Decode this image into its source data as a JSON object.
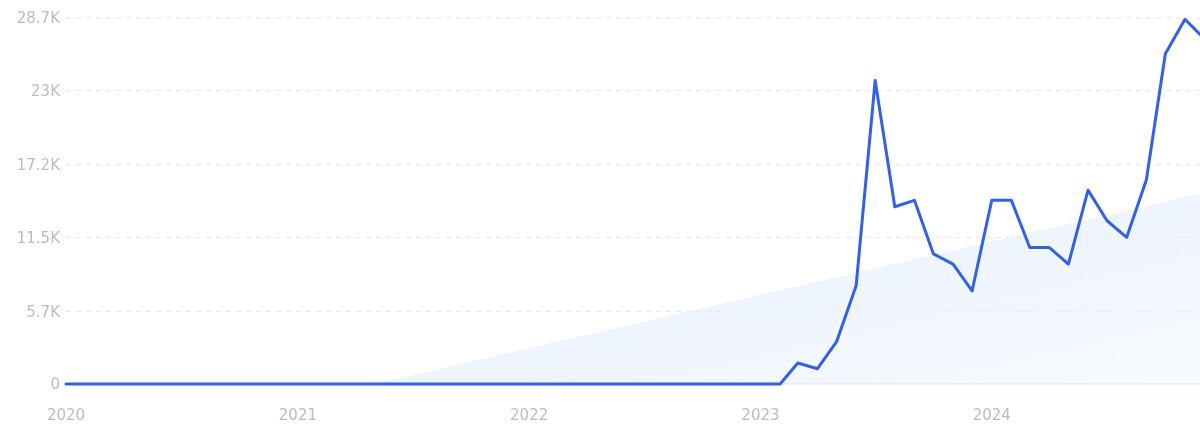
{
  "chart_data": {
    "type": "line",
    "xlim": [
      "2020-01",
      "2024-12"
    ],
    "xticks": [
      "2020",
      "2021",
      "2022",
      "2023",
      "2024"
    ],
    "ylim": [
      0,
      28700
    ],
    "yticks": [
      0,
      {
        "value": 5700,
        "label": "5.7K"
      },
      {
        "value": 11500,
        "label": "11.5K"
      },
      {
        "value": 17200,
        "label": "17.2K"
      },
      {
        "value": 23000,
        "label": "23K"
      },
      {
        "value": 28700,
        "label": "28.7K"
      }
    ],
    "grid": "y",
    "line_style": "solid",
    "series": [
      {
        "type": "area",
        "color": "#e6effc",
        "x": [
          "2021-05",
          "2024-12"
        ],
        "values": [
          0,
          15000
        ]
      },
      {
        "color": "#3461e3",
        "x": [
          "2020-01",
          "2023-02",
          "2023-03",
          "2023-04",
          "2023-05",
          "2023-06",
          "2023-07",
          "2023-08",
          "2023-09",
          "2023-10",
          "2023-11",
          "2023-12",
          "2024-01",
          "2024-02",
          "2024-03",
          "2024-04",
          "2024-05",
          "2024-06",
          "2024-07",
          "2024-08",
          "2024-09",
          "2024-10",
          "2024-11",
          "2024-12"
        ],
        "values": [
          0,
          0,
          1650,
          1200,
          3300,
          7700,
          23800,
          13900,
          14400,
          10200,
          9400,
          7300,
          14400,
          14400,
          10700,
          10700,
          9400,
          15200,
          12800,
          11500,
          16000,
          25900,
          28600,
          27100
        ]
      }
    ]
  }
}
